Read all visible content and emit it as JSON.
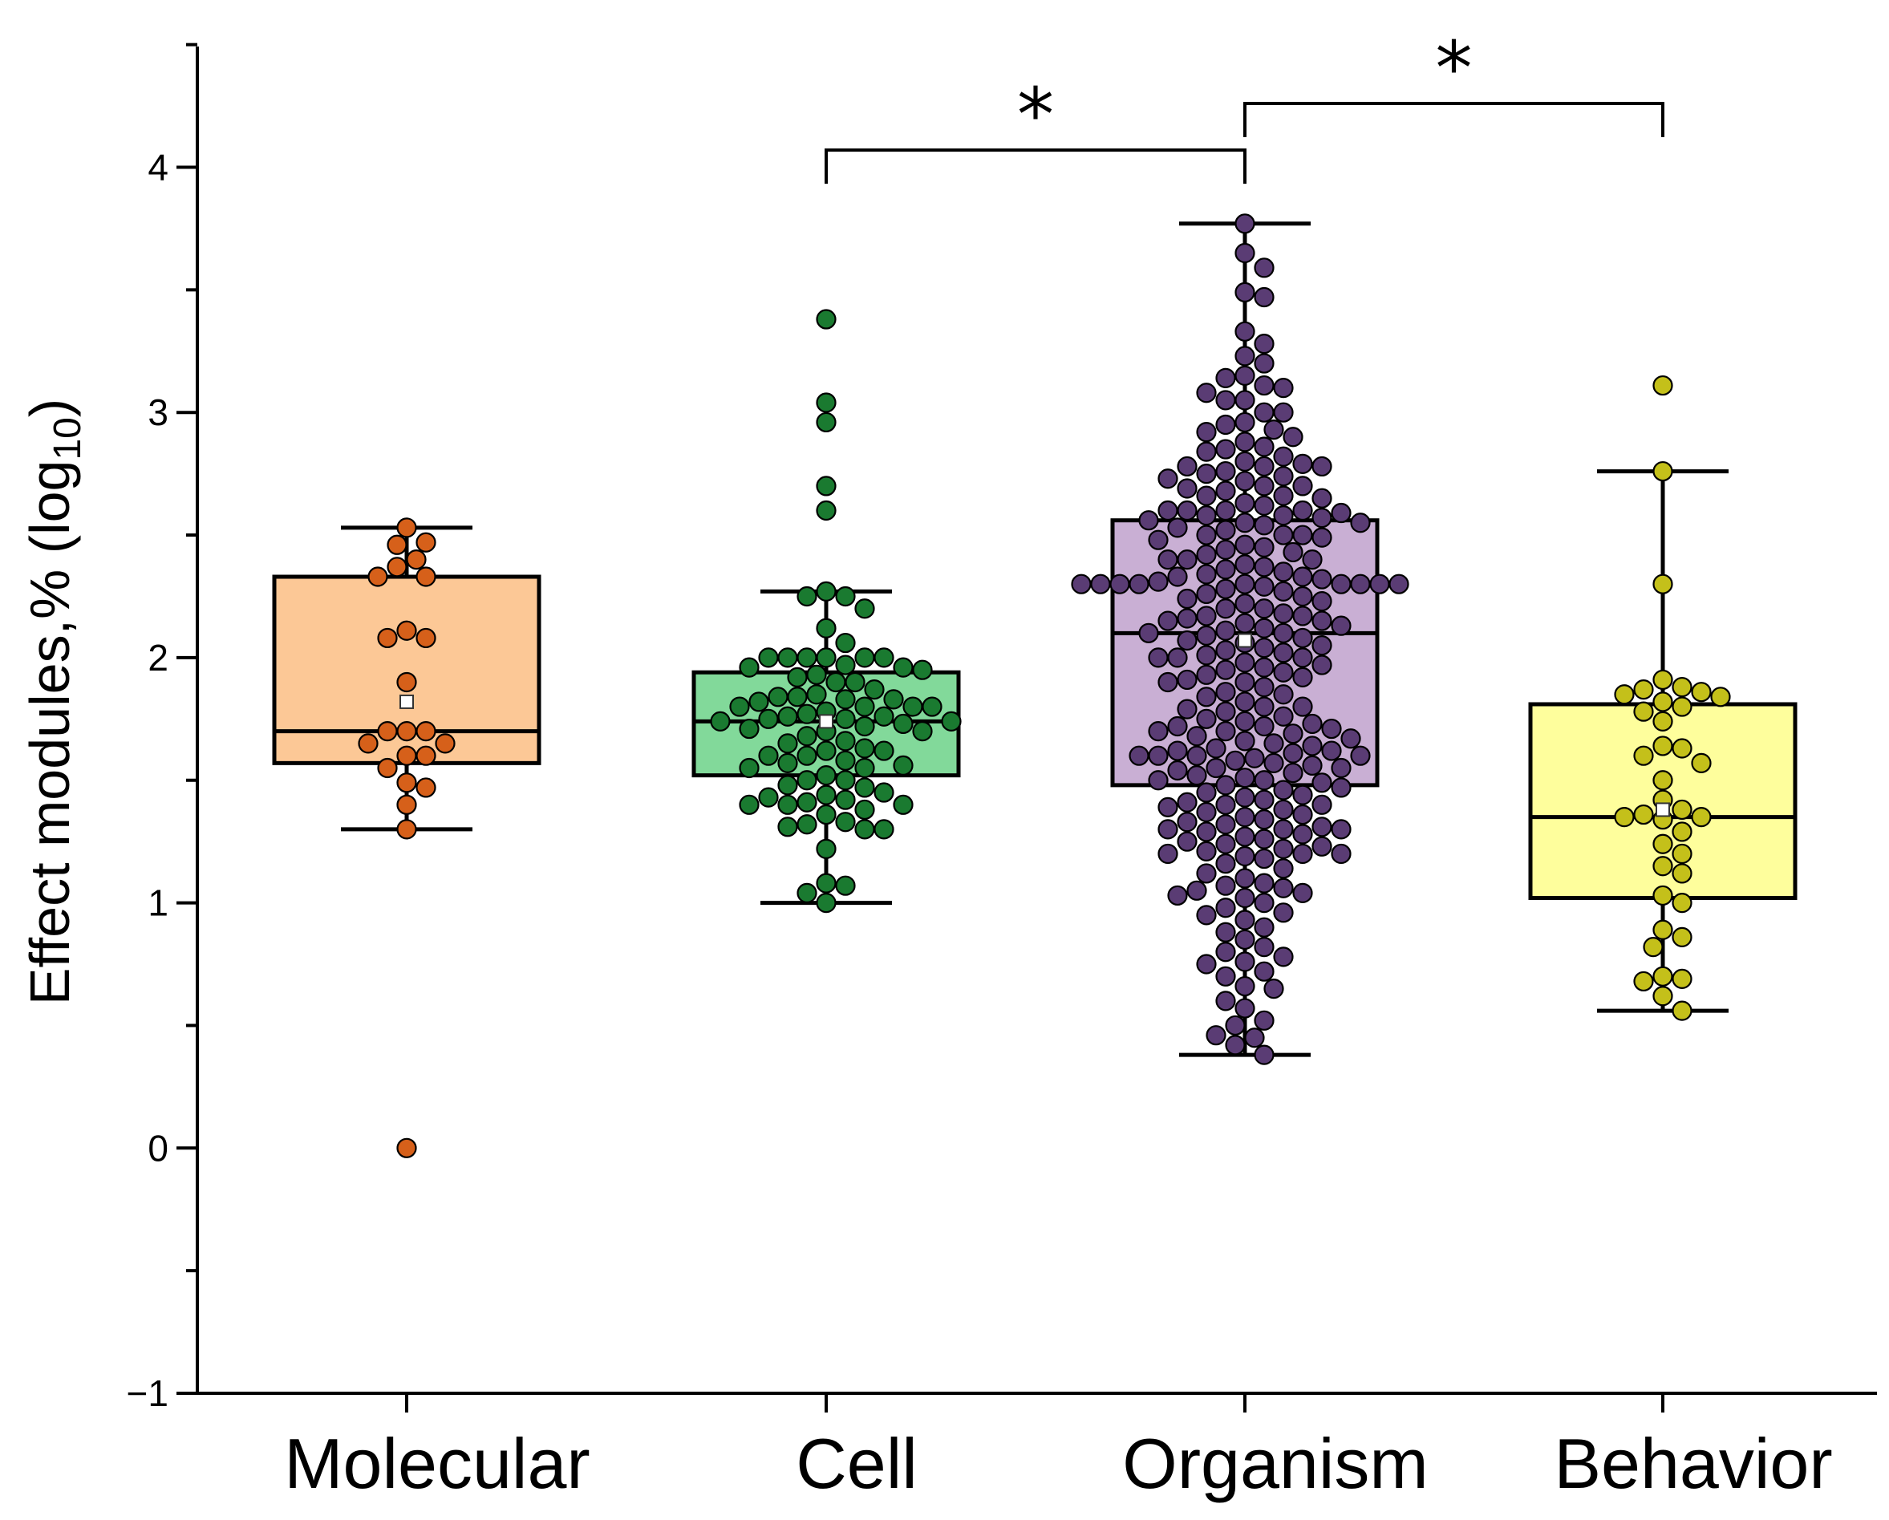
{
  "chart_data": {
    "type": "box-swarm",
    "title": "",
    "ylabel": "Effect modules,% (log",
    "ylabel_subscript": "10",
    "ylabel_suffix": ")",
    "ylim": [
      -1,
      4.5
    ],
    "yticks": [
      -1,
      0,
      1,
      2,
      3,
      4
    ],
    "ytick_labels": [
      "−1",
      "0",
      "1",
      "2",
      "3",
      "4"
    ],
    "categories": [
      "Molecular",
      "Cell",
      "Organism",
      "Behavior"
    ],
    "series": [
      {
        "name": "Molecular",
        "box_color": "#fcc896",
        "point_color": "#d6601a",
        "box": {
          "q1": 1.57,
          "median": 1.7,
          "q3": 2.33,
          "whisker_low": 1.3,
          "whisker_high": 2.53,
          "mean": 1.82
        },
        "points": [
          2.53,
          2.47,
          2.46,
          2.4,
          2.37,
          2.33,
          2.33,
          2.11,
          2.08,
          2.08,
          1.9,
          1.7,
          1.7,
          1.7,
          1.65,
          1.65,
          1.6,
          1.6,
          1.55,
          1.49,
          1.47,
          1.4,
          1.3,
          0.0
        ]
      },
      {
        "name": "Cell",
        "box_color": "#82d99a",
        "point_color": "#1a7a30",
        "box": {
          "q1": 1.52,
          "median": 1.74,
          "q3": 1.94,
          "whisker_low": 1.0,
          "whisker_high": 2.27,
          "mean": 1.74
        },
        "points": [
          3.38,
          3.04,
          2.96,
          2.7,
          2.6,
          2.27,
          2.25,
          2.25,
          2.2,
          2.12,
          2.06,
          2.0,
          2.0,
          2.0,
          2.0,
          2.0,
          2.0,
          1.97,
          1.96,
          1.96,
          1.95,
          1.93,
          1.92,
          1.9,
          1.9,
          1.87,
          1.85,
          1.84,
          1.84,
          1.83,
          1.83,
          1.82,
          1.8,
          1.8,
          1.8,
          1.8,
          1.78,
          1.77,
          1.76,
          1.76,
          1.75,
          1.75,
          1.74,
          1.74,
          1.73,
          1.72,
          1.71,
          1.7,
          1.7,
          1.68,
          1.66,
          1.65,
          1.63,
          1.62,
          1.62,
          1.6,
          1.6,
          1.58,
          1.57,
          1.56,
          1.55,
          1.55,
          1.52,
          1.5,
          1.5,
          1.48,
          1.47,
          1.45,
          1.44,
          1.43,
          1.42,
          1.41,
          1.4,
          1.4,
          1.4,
          1.38,
          1.36,
          1.33,
          1.32,
          1.31,
          1.3,
          1.3,
          1.22,
          1.08,
          1.07,
          1.04,
          1.0
        ]
      },
      {
        "name": "Organism",
        "box_color": "#c9afd4",
        "point_color": "#5a3c74",
        "box": {
          "q1": 1.48,
          "median": 2.1,
          "q3": 2.56,
          "whisker_low": 0.38,
          "whisker_high": 3.77,
          "mean": 2.07
        },
        "points": [
          3.77,
          3.65,
          3.59,
          3.49,
          3.47,
          3.33,
          3.28,
          3.23,
          3.2,
          3.15,
          3.14,
          3.11,
          3.1,
          3.08,
          3.05,
          3.05,
          3.0,
          3.0,
          2.96,
          2.95,
          2.93,
          2.92,
          2.9,
          2.88,
          2.86,
          2.85,
          2.84,
          2.82,
          2.8,
          2.79,
          2.78,
          2.78,
          2.78,
          2.76,
          2.75,
          2.74,
          2.73,
          2.72,
          2.7,
          2.7,
          2.69,
          2.68,
          2.66,
          2.66,
          2.65,
          2.63,
          2.62,
          2.6,
          2.6,
          2.6,
          2.6,
          2.59,
          2.58,
          2.58,
          2.57,
          2.56,
          2.55,
          2.55,
          2.54,
          2.53,
          2.52,
          2.5,
          2.5,
          2.5,
          2.49,
          2.48,
          2.46,
          2.45,
          2.44,
          2.43,
          2.42,
          2.4,
          2.4,
          2.4,
          2.38,
          2.37,
          2.36,
          2.35,
          2.34,
          2.33,
          2.33,
          2.32,
          2.31,
          2.3,
          2.3,
          2.3,
          2.3,
          2.3,
          2.3,
          2.3,
          2.3,
          2.3,
          2.29,
          2.28,
          2.27,
          2.26,
          2.25,
          2.24,
          2.23,
          2.22,
          2.2,
          2.2,
          2.18,
          2.17,
          2.17,
          2.16,
          2.15,
          2.15,
          2.14,
          2.13,
          2.12,
          2.11,
          2.1,
          2.1,
          2.09,
          2.08,
          2.07,
          2.06,
          2.05,
          2.04,
          2.03,
          2.02,
          2.01,
          2.0,
          2.0,
          2.0,
          1.98,
          1.97,
          1.96,
          1.95,
          1.94,
          1.93,
          1.92,
          1.91,
          1.9,
          1.9,
          1.88,
          1.86,
          1.85,
          1.84,
          1.82,
          1.8,
          1.8,
          1.79,
          1.78,
          1.76,
          1.75,
          1.74,
          1.73,
          1.72,
          1.72,
          1.71,
          1.7,
          1.7,
          1.69,
          1.68,
          1.67,
          1.66,
          1.65,
          1.64,
          1.63,
          1.62,
          1.62,
          1.61,
          1.6,
          1.6,
          1.6,
          1.6,
          1.59,
          1.58,
          1.57,
          1.56,
          1.55,
          1.55,
          1.54,
          1.53,
          1.52,
          1.51,
          1.5,
          1.5,
          1.49,
          1.48,
          1.47,
          1.46,
          1.45,
          1.44,
          1.43,
          1.42,
          1.41,
          1.4,
          1.4,
          1.39,
          1.38,
          1.37,
          1.36,
          1.35,
          1.34,
          1.33,
          1.32,
          1.31,
          1.3,
          1.3,
          1.3,
          1.29,
          1.28,
          1.27,
          1.26,
          1.25,
          1.24,
          1.23,
          1.22,
          1.21,
          1.2,
          1.2,
          1.2,
          1.19,
          1.18,
          1.16,
          1.14,
          1.12,
          1.1,
          1.08,
          1.07,
          1.06,
          1.05,
          1.04,
          1.03,
          1.02,
          1.0,
          0.98,
          0.96,
          0.95,
          0.93,
          0.9,
          0.88,
          0.85,
          0.82,
          0.8,
          0.78,
          0.76,
          0.75,
          0.72,
          0.7,
          0.66,
          0.65,
          0.6,
          0.57,
          0.52,
          0.5,
          0.46,
          0.45,
          0.42,
          0.38
        ]
      },
      {
        "name": "Behavior",
        "box_color": "#fefe9c",
        "point_color": "#c4c01a",
        "box": {
          "q1": 1.02,
          "median": 1.35,
          "q3": 1.81,
          "whisker_low": 0.56,
          "whisker_high": 2.76,
          "mean": 1.38
        },
        "points": [
          3.11,
          2.76,
          2.3,
          1.91,
          1.88,
          1.87,
          1.86,
          1.85,
          1.84,
          1.82,
          1.8,
          1.78,
          1.74,
          1.64,
          1.63,
          1.6,
          1.57,
          1.5,
          1.42,
          1.38,
          1.36,
          1.35,
          1.35,
          1.34,
          1.29,
          1.24,
          1.2,
          1.15,
          1.12,
          1.03,
          1.0,
          0.89,
          0.86,
          0.82,
          0.7,
          0.69,
          0.68,
          0.62,
          0.56
        ]
      }
    ],
    "significance": [
      {
        "from": "Cell",
        "to": "Organism",
        "label": "*",
        "y": 4.07
      },
      {
        "from": "Organism",
        "to": "Behavior",
        "label": "*",
        "y": 4.26
      }
    ]
  }
}
